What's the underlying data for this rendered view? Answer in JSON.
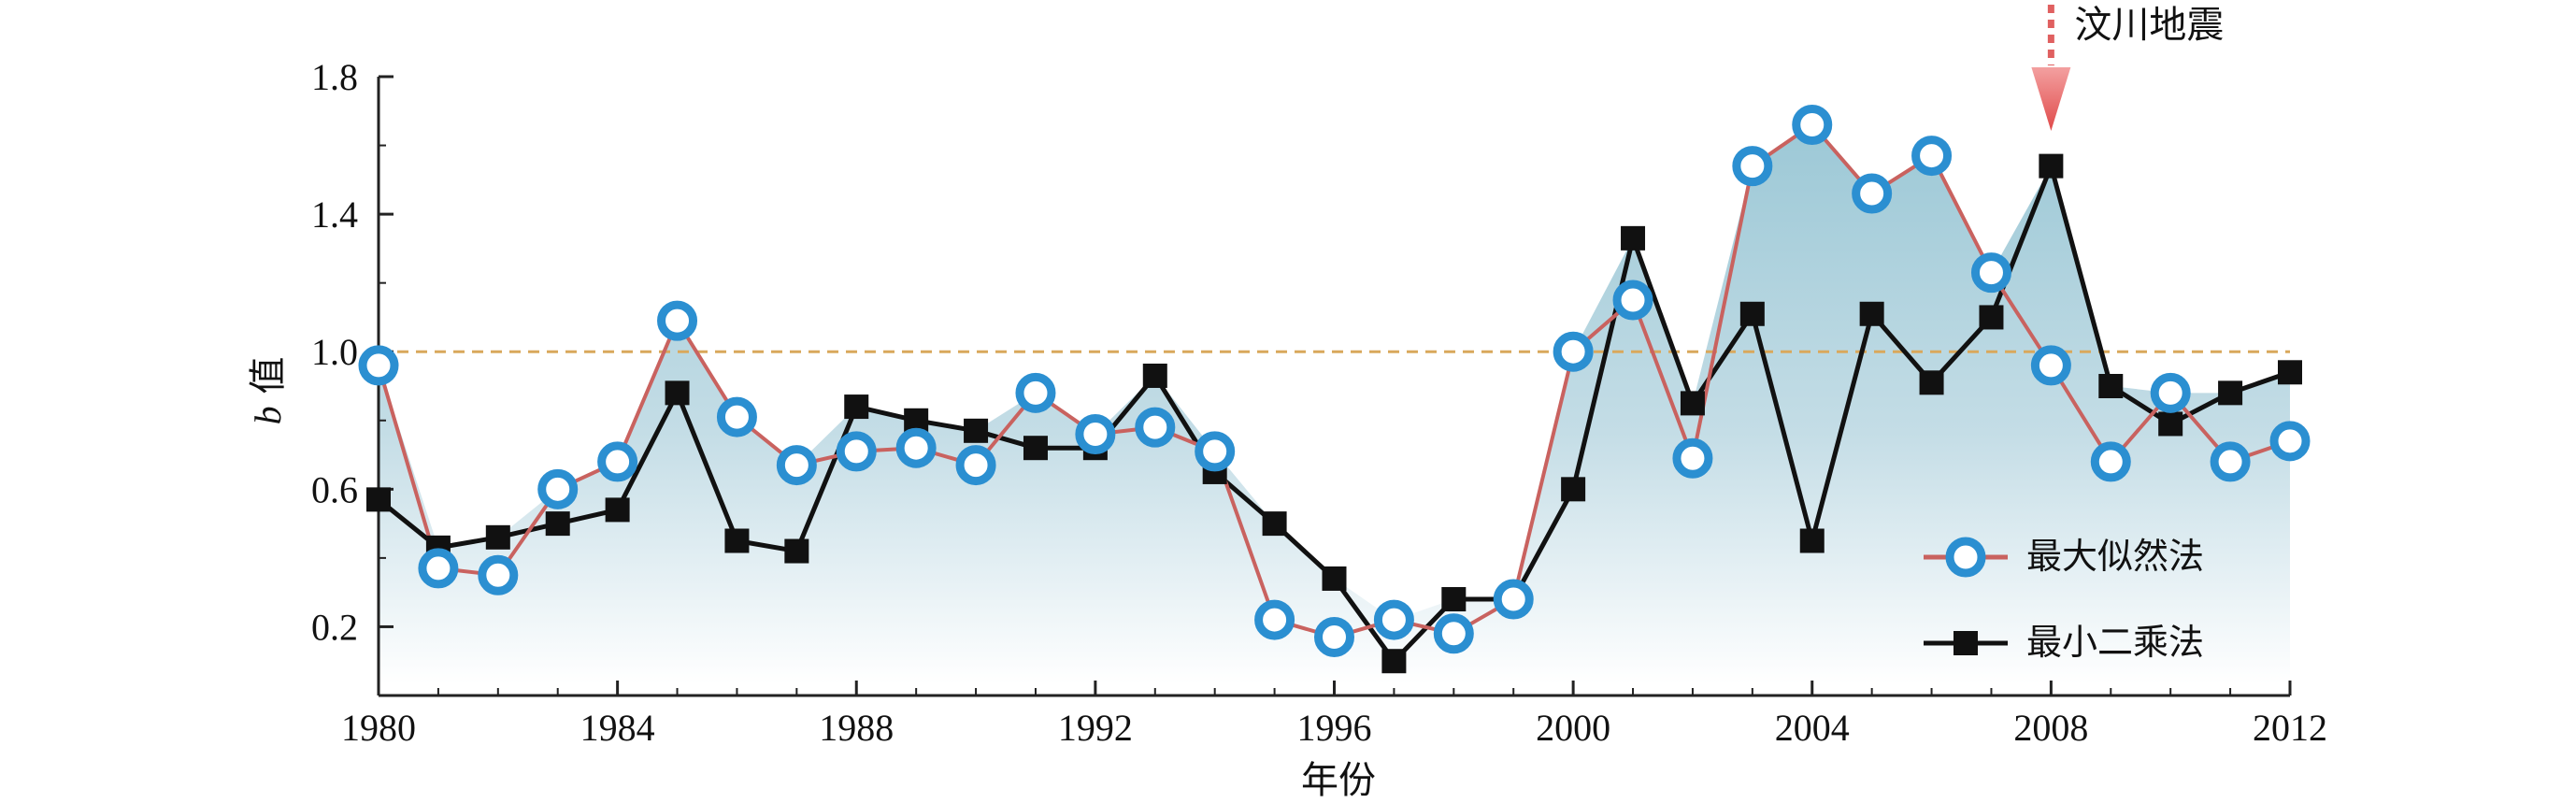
{
  "chart_data": {
    "type": "line",
    "xlabel": "年份",
    "ylabel_italic": "b",
    "ylabel_rest": " 值",
    "xlim": [
      1980,
      2012
    ],
    "ylim": [
      0,
      1.8
    ],
    "x_ticks": [
      "1980",
      "1984",
      "1988",
      "1992",
      "1996",
      "2000",
      "2004",
      "2008",
      "2012"
    ],
    "y_ticks": [
      "0.2",
      "0.6",
      "1.0",
      "1.4",
      "1.8"
    ],
    "reference_line": 1.0,
    "legend_position": "bottom-right",
    "annotation": {
      "text": "汶川地震",
      "x": 2008
    },
    "x": [
      1980,
      1981,
      1982,
      1983,
      1984,
      1985,
      1986,
      1987,
      1988,
      1989,
      1990,
      1991,
      1992,
      1993,
      1994,
      1995,
      1996,
      1997,
      1998,
      1999,
      2000,
      2001,
      2002,
      2003,
      2004,
      2005,
      2006,
      2007,
      2008,
      2009,
      2010,
      2011,
      2012
    ],
    "series": [
      {
        "name": "最大似然法",
        "color": "#c9625f",
        "marker": "open-circle",
        "marker_color": "#2b8fd1",
        "values": [
          0.96,
          0.37,
          0.35,
          0.6,
          0.68,
          1.09,
          0.81,
          0.67,
          0.71,
          0.72,
          0.67,
          0.88,
          0.76,
          0.78,
          0.71,
          0.22,
          0.17,
          0.22,
          0.18,
          0.28,
          1.0,
          1.15,
          0.69,
          1.54,
          1.66,
          1.46,
          1.57,
          1.23,
          0.96,
          0.68,
          0.88,
          0.68,
          0.74
        ]
      },
      {
        "name": "最小二乘法",
        "color": "#111111",
        "marker": "filled-square",
        "marker_color": "#111111",
        "values": [
          0.57,
          0.43,
          0.46,
          0.5,
          0.54,
          0.88,
          0.45,
          0.42,
          0.84,
          0.8,
          0.77,
          0.72,
          0.72,
          0.93,
          0.65,
          0.5,
          0.34,
          0.1,
          0.28,
          0.28,
          0.6,
          1.33,
          0.85,
          1.11,
          0.45,
          1.11,
          0.91,
          1.1,
          1.54,
          0.9,
          0.79,
          0.88,
          0.94
        ]
      }
    ],
    "colors": {
      "fill_top": "#9cc8d6",
      "fill_bottom": "#ffffff",
      "reference_line": "#d9a85c",
      "annotation_arrow": "#e06060"
    }
  }
}
